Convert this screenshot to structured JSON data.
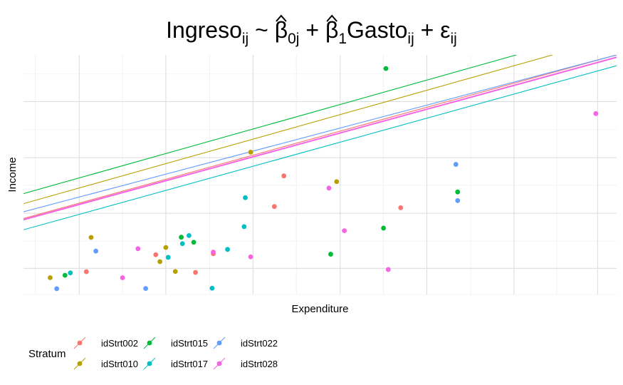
{
  "chart_data": {
    "type": "scatter",
    "title": {
      "parts": [
        {
          "text": "Ingreso",
          "style": "normal"
        },
        {
          "text": "ij",
          "style": "sub"
        },
        {
          "text": " ~ ",
          "style": "normal"
        },
        {
          "text": "β",
          "style": "hat"
        },
        {
          "text": "0j",
          "style": "sub"
        },
        {
          "text": " + ",
          "style": "normal"
        },
        {
          "text": "β",
          "style": "hat"
        },
        {
          "text": "1",
          "style": "sub"
        },
        {
          "text": "Gasto",
          "style": "normal"
        },
        {
          "text": "ij",
          "style": "sub"
        },
        {
          "text": " + ",
          "style": "normal"
        },
        {
          "text": "ε",
          "style": "normal"
        },
        {
          "text": "ij",
          "style": "sub"
        }
      ]
    },
    "xlabel": "Expenditure",
    "ylabel": "Income",
    "xlim": [
      0,
      100
    ],
    "ylim": [
      0,
      100
    ],
    "grid": true,
    "legend_position": "bottom-left",
    "legend_title": "Stratum",
    "series": [
      {
        "name": "idStrt002",
        "color": "#F8766D",
        "points": [
          [
            10.6,
            9.5
          ],
          [
            22.3,
            16.6
          ],
          [
            29.0,
            9.2
          ],
          [
            32.0,
            17.0
          ],
          [
            42.3,
            36.7
          ],
          [
            43.9,
            49.5
          ],
          [
            63.6,
            36.2
          ]
        ],
        "line": [
          [
            0,
            31.7
          ],
          [
            100,
            100.0
          ]
        ]
      },
      {
        "name": "idStrt010",
        "color": "#B79F00",
        "points": [
          [
            4.5,
            7.0
          ],
          [
            11.4,
            23.8
          ],
          [
            23.0,
            13.7
          ],
          [
            24.0,
            19.6
          ],
          [
            25.6,
            9.6
          ],
          [
            38.3,
            59.4
          ],
          [
            52.8,
            47.1
          ]
        ],
        "line": [
          [
            0,
            37.9
          ],
          [
            89.2,
            100.0
          ]
        ]
      },
      {
        "name": "idStrt015",
        "color": "#00BA38",
        "points": [
          [
            7.0,
            8.0
          ],
          [
            26.6,
            23.9
          ],
          [
            28.7,
            21.8
          ],
          [
            51.8,
            16.8
          ],
          [
            60.7,
            27.7
          ],
          [
            61.1,
            94.3
          ],
          [
            73.2,
            42.8
          ]
        ],
        "line": [
          [
            0,
            42.1
          ],
          [
            83.1,
            100.0
          ]
        ]
      },
      {
        "name": "idStrt017",
        "color": "#00BFC4",
        "points": [
          [
            7.9,
            9.0
          ],
          [
            24.4,
            15.5
          ],
          [
            26.8,
            21.2
          ],
          [
            27.9,
            24.6
          ],
          [
            31.8,
            2.6
          ],
          [
            34.4,
            18.8
          ],
          [
            37.2,
            28.3
          ],
          [
            37.4,
            40.4
          ]
        ],
        "line": [
          [
            0,
            27.0
          ],
          [
            100,
            95.5
          ]
        ]
      },
      {
        "name": "idStrt022",
        "color": "#619CFF",
        "points": [
          [
            5.6,
            2.4
          ],
          [
            12.2,
            18.1
          ],
          [
            20.6,
            2.5
          ],
          [
            72.9,
            54.3
          ],
          [
            73.2,
            39.2
          ]
        ],
        "line": [
          [
            0,
            34.5
          ],
          [
            100,
            100.0
          ]
        ]
      },
      {
        "name": "idStrt028",
        "color": "#F564E3",
        "points": [
          [
            16.7,
            7.0
          ],
          [
            19.3,
            19.1
          ],
          [
            32.0,
            17.7
          ],
          [
            38.3,
            15.7
          ],
          [
            51.5,
            44.4
          ],
          [
            54.1,
            26.6
          ],
          [
            61.5,
            10.4
          ],
          [
            96.5,
            75.5
          ]
        ],
        "line": [
          [
            0,
            31.2
          ],
          [
            100,
            99.0
          ]
        ]
      }
    ]
  }
}
